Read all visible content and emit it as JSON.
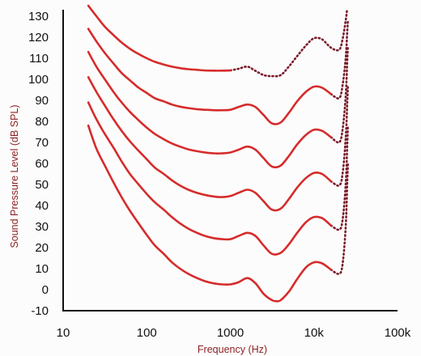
{
  "chart_data": {
    "type": "line",
    "xlabel": "Frequency (Hz)",
    "ylabel": "Sound Pressure Level (dB SPL)",
    "x_scale": "log",
    "xlim": [
      10,
      100000
    ],
    "ylim": [
      -10,
      130
    ],
    "x_ticks": [
      10,
      100,
      1000,
      10000,
      100000
    ],
    "x_tick_labels": [
      "10",
      "100",
      "1000",
      "10k",
      "100k"
    ],
    "y_ticks": [
      130,
      120,
      110,
      100,
      90,
      80,
      70,
      60,
      50,
      40,
      30,
      20,
      10,
      0,
      -10
    ],
    "y_tick_labels": [
      "130",
      "120",
      "110",
      "100",
      "90",
      "80",
      "70",
      "60",
      "50",
      "40",
      "30",
      "20",
      "10",
      "0",
      "-10"
    ],
    "grid": false,
    "colors": {
      "solid": "#d62b2b",
      "dotted": "#7a1a2a",
      "axis": "#111111"
    },
    "series": [
      {
        "solid": [
          [
            20,
            78
          ],
          [
            25,
            67
          ],
          [
            31.5,
            59
          ],
          [
            40,
            51
          ],
          [
            50,
            44
          ],
          [
            63,
            37.5
          ],
          [
            80,
            31.5
          ],
          [
            100,
            26
          ],
          [
            125,
            21
          ],
          [
            160,
            17
          ],
          [
            200,
            13
          ],
          [
            250,
            10
          ],
          [
            315,
            7.5
          ],
          [
            400,
            5.5
          ],
          [
            500,
            4
          ],
          [
            630,
            3
          ],
          [
            800,
            2.5
          ],
          [
            1000,
            2.5
          ],
          [
            1250,
            3.5
          ],
          [
            1600,
            5.5
          ],
          [
            2000,
            3
          ],
          [
            2500,
            -2
          ],
          [
            3150,
            -5
          ],
          [
            3600,
            -5.5
          ],
          [
            4000,
            -5
          ],
          [
            5000,
            -1
          ],
          [
            6300,
            5
          ],
          [
            8000,
            10.5
          ],
          [
            10000,
            13
          ],
          [
            12500,
            12.5
          ],
          [
            16000,
            9.5
          ]
        ],
        "dotted": [
          [
            16000,
            9.5
          ],
          [
            20000,
            7.5
          ],
          [
            22000,
            12
          ],
          [
            24000,
            30
          ],
          [
            25000,
            50
          ],
          [
            25500,
            60
          ]
        ]
      },
      {
        "solid": [
          [
            20,
            89
          ],
          [
            25,
            81
          ],
          [
            31.5,
            74
          ],
          [
            40,
            67.5
          ],
          [
            50,
            61
          ],
          [
            63,
            55
          ],
          [
            80,
            50
          ],
          [
            100,
            45.5
          ],
          [
            125,
            41.5
          ],
          [
            160,
            38
          ],
          [
            200,
            34.5
          ],
          [
            250,
            31.5
          ],
          [
            315,
            29
          ],
          [
            400,
            27
          ],
          [
            500,
            25.5
          ],
          [
            630,
            24.5
          ],
          [
            800,
            24
          ],
          [
            1000,
            24
          ],
          [
            1250,
            25.5
          ],
          [
            1600,
            27
          ],
          [
            2000,
            25.5
          ],
          [
            2500,
            21
          ],
          [
            3150,
            17
          ],
          [
            4000,
            17.5
          ],
          [
            5000,
            21.5
          ],
          [
            6300,
            27
          ],
          [
            8000,
            32
          ],
          [
            10000,
            34.5
          ],
          [
            12500,
            34
          ],
          [
            16000,
            30.5
          ]
        ],
        "dotted": [
          [
            16000,
            30.5
          ],
          [
            20000,
            28.5
          ],
          [
            22000,
            33
          ],
          [
            24000,
            50
          ],
          [
            25000,
            68
          ],
          [
            25500,
            78
          ]
        ]
      },
      {
        "solid": [
          [
            20,
            101
          ],
          [
            25,
            94
          ],
          [
            31.5,
            87.5
          ],
          [
            40,
            81
          ],
          [
            50,
            75.5
          ],
          [
            63,
            70.5
          ],
          [
            80,
            66
          ],
          [
            100,
            62
          ],
          [
            125,
            58
          ],
          [
            160,
            55
          ],
          [
            200,
            52
          ],
          [
            250,
            49.5
          ],
          [
            315,
            47.5
          ],
          [
            400,
            46
          ],
          [
            500,
            45
          ],
          [
            630,
            44.3
          ],
          [
            800,
            44
          ],
          [
            1000,
            44.5
          ],
          [
            1250,
            46
          ],
          [
            1600,
            47.5
          ],
          [
            2000,
            46
          ],
          [
            2500,
            42
          ],
          [
            3150,
            38
          ],
          [
            4000,
            38.5
          ],
          [
            5000,
            43
          ],
          [
            6300,
            48.5
          ],
          [
            8000,
            53
          ],
          [
            10000,
            55.5
          ],
          [
            12500,
            55
          ],
          [
            16000,
            51.5
          ]
        ],
        "dotted": [
          [
            16000,
            51.5
          ],
          [
            20000,
            49.5
          ],
          [
            22000,
            55
          ],
          [
            24000,
            72
          ],
          [
            25000,
            88
          ],
          [
            25500,
            97
          ]
        ]
      },
      {
        "solid": [
          [
            20,
            113
          ],
          [
            25,
            106
          ],
          [
            31.5,
            100
          ],
          [
            40,
            94
          ],
          [
            50,
            89
          ],
          [
            63,
            84.5
          ],
          [
            80,
            80.5
          ],
          [
            100,
            77
          ],
          [
            125,
            74
          ],
          [
            160,
            71.5
          ],
          [
            200,
            69.5
          ],
          [
            250,
            68
          ],
          [
            315,
            66.7
          ],
          [
            400,
            65.8
          ],
          [
            500,
            65.2
          ],
          [
            630,
            64.8
          ],
          [
            800,
            64.8
          ],
          [
            1000,
            65.2
          ],
          [
            1250,
            66.5
          ],
          [
            1600,
            68
          ],
          [
            2000,
            66.5
          ],
          [
            2500,
            62.5
          ],
          [
            3150,
            58.5
          ],
          [
            4000,
            59
          ],
          [
            5000,
            63.5
          ],
          [
            6300,
            69
          ],
          [
            8000,
            73.5
          ],
          [
            10000,
            76
          ],
          [
            12500,
            75.5
          ],
          [
            16000,
            72.5
          ]
        ],
        "dotted": [
          [
            16000,
            72.5
          ],
          [
            20000,
            70
          ],
          [
            22000,
            76
          ],
          [
            24000,
            92
          ],
          [
            25000,
            108
          ],
          [
            25500,
            116
          ]
        ]
      },
      {
        "solid": [
          [
            20,
            124
          ],
          [
            25,
            118
          ],
          [
            31.5,
            112.5
          ],
          [
            40,
            107.5
          ],
          [
            50,
            103
          ],
          [
            63,
            99.5
          ],
          [
            80,
            96
          ],
          [
            100,
            93.5
          ],
          [
            125,
            91
          ],
          [
            160,
            89.5
          ],
          [
            200,
            88
          ],
          [
            250,
            87
          ],
          [
            315,
            86.3
          ],
          [
            400,
            85.8
          ],
          [
            500,
            85.5
          ],
          [
            630,
            85.3
          ],
          [
            800,
            85.3
          ],
          [
            1000,
            85.5
          ],
          [
            1250,
            86.8
          ],
          [
            1600,
            88
          ],
          [
            2000,
            86.8
          ],
          [
            2500,
            83
          ],
          [
            3150,
            79
          ],
          [
            4000,
            79.5
          ],
          [
            5000,
            84
          ],
          [
            6300,
            89.5
          ],
          [
            8000,
            94
          ],
          [
            10000,
            96.5
          ],
          [
            12500,
            96
          ],
          [
            16000,
            93
          ]
        ],
        "dotted": [
          [
            16000,
            93
          ],
          [
            20000,
            91
          ],
          [
            22000,
            97
          ],
          [
            24000,
            110
          ],
          [
            25000,
            122
          ],
          [
            25500,
            128
          ]
        ]
      },
      {
        "solid": [
          [
            20,
            135
          ],
          [
            25,
            130
          ],
          [
            31.5,
            125
          ],
          [
            40,
            121
          ],
          [
            50,
            117.5
          ],
          [
            63,
            114.5
          ],
          [
            80,
            112
          ],
          [
            100,
            110
          ],
          [
            125,
            108.3
          ],
          [
            160,
            107
          ],
          [
            200,
            106
          ],
          [
            250,
            105.3
          ],
          [
            315,
            104.8
          ],
          [
            400,
            104.5
          ],
          [
            500,
            104.2
          ],
          [
            630,
            104.1
          ],
          [
            800,
            104.1
          ],
          [
            1000,
            104.2
          ]
        ],
        "dotted": [
          [
            1000,
            104.2
          ],
          [
            1250,
            105
          ],
          [
            1600,
            106
          ],
          [
            2000,
            104
          ],
          [
            2500,
            102
          ],
          [
            3150,
            101.5
          ],
          [
            4000,
            102
          ],
          [
            5000,
            106
          ],
          [
            6300,
            111
          ],
          [
            8000,
            116
          ],
          [
            10000,
            119.5
          ],
          [
            12500,
            119
          ],
          [
            16000,
            115
          ],
          [
            20000,
            114
          ],
          [
            22000,
            119
          ],
          [
            24000,
            128
          ],
          [
            25000,
            133.5
          ]
        ]
      }
    ]
  }
}
